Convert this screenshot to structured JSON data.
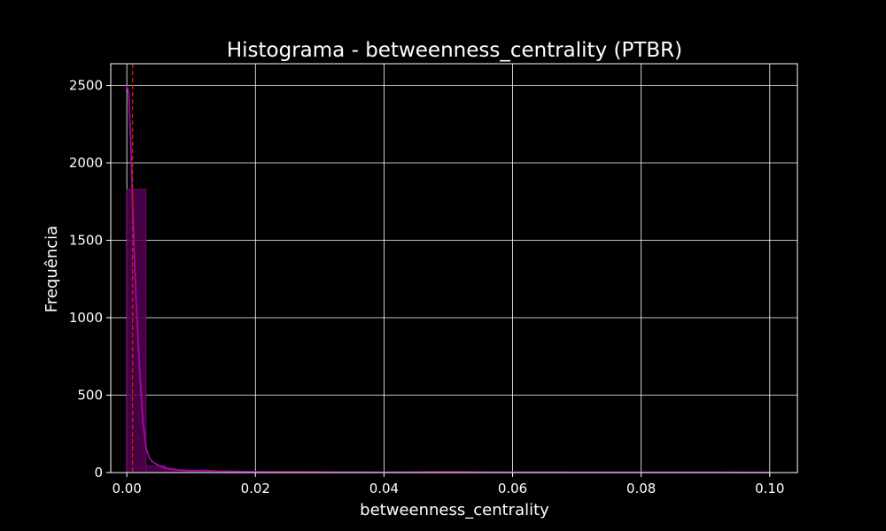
{
  "chart_data": {
    "type": "bar",
    "title": "Histograma - betweenness_centrality (PTBR)",
    "xlabel": "betweenness_centrality",
    "ylabel": "Frequência",
    "xlim": [
      -0.0025,
      0.1043
    ],
    "ylim": [
      0,
      2640
    ],
    "x_ticks": [
      0.0,
      0.02,
      0.04,
      0.06,
      0.08,
      0.1
    ],
    "x_tick_labels": [
      "0.00",
      "0.02",
      "0.04",
      "0.06",
      "0.08",
      "0.10"
    ],
    "y_ticks": [
      0,
      500,
      1000,
      1500,
      2000,
      2500
    ],
    "y_tick_labels": [
      "0",
      "500",
      "1000",
      "1500",
      "2000",
      "2500"
    ],
    "grid": true,
    "bins": [
      {
        "x0": 0.0,
        "x1": 0.003,
        "count": 1830
      },
      {
        "x0": 0.003,
        "x1": 0.006,
        "count": 45
      },
      {
        "x0": 0.006,
        "x1": 0.009,
        "count": 18
      },
      {
        "x0": 0.009,
        "x1": 0.012,
        "count": 10
      },
      {
        "x0": 0.012,
        "x1": 0.015,
        "count": 8
      },
      {
        "x0": 0.015,
        "x1": 0.018,
        "count": 5
      },
      {
        "x0": 0.018,
        "x1": 0.021,
        "count": 4
      },
      {
        "x0": 0.021,
        "x1": 0.024,
        "count": 3
      },
      {
        "x0": 0.024,
        "x1": 0.027,
        "count": 2
      },
      {
        "x0": 0.027,
        "x1": 0.03,
        "count": 2
      },
      {
        "x0": 0.03,
        "x1": 0.033,
        "count": 1
      },
      {
        "x0": 0.033,
        "x1": 0.036,
        "count": 1
      },
      {
        "x0": 0.036,
        "x1": 0.039,
        "count": 1
      }
    ],
    "kde": {
      "x": [
        0.0,
        0.0003,
        0.0006,
        0.001,
        0.0014,
        0.002,
        0.0025,
        0.003,
        0.0035,
        0.004,
        0.005,
        0.006,
        0.008,
        0.01,
        0.012,
        0.014,
        0.02,
        0.03,
        0.04,
        0.05,
        0.06,
        0.07,
        0.08,
        0.09,
        0.1
      ],
      "y": [
        2500,
        2450,
        2150,
        1600,
        1150,
        650,
        330,
        160,
        95,
        70,
        45,
        30,
        16,
        12,
        14,
        9,
        6,
        4,
        3,
        5,
        3,
        2,
        2,
        2,
        1
      ]
    },
    "reference_lines": [
      0.0009
    ],
    "colors": {
      "background": "#000000",
      "grid": "#ffffff",
      "text": "#ffffff",
      "bar_fill": "#520052",
      "bar_stroke": "#7a0a7a",
      "kde": "#a10aa1",
      "reference_line": "#cc2200"
    }
  }
}
